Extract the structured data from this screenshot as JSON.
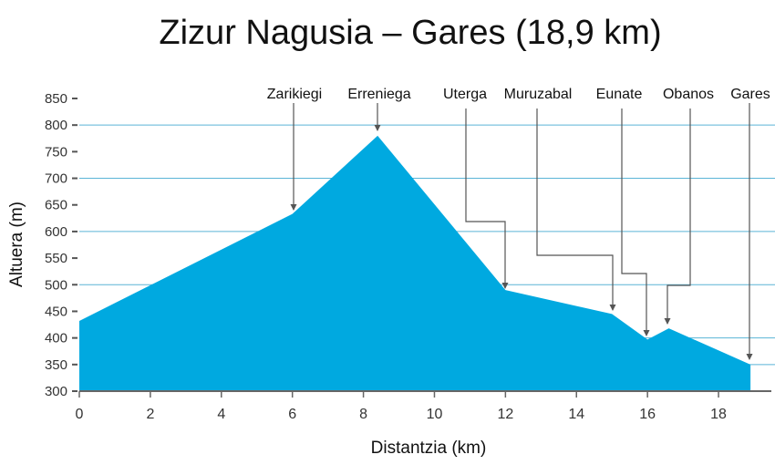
{
  "chart_data": {
    "type": "area",
    "title": "Zizur Nagusia – Gares (18,9 km)",
    "xlabel": "Distantzia (km)",
    "ylabel": "Altuera (m)",
    "xlim": [
      0,
      19
    ],
    "ylim": [
      300,
      850
    ],
    "xticks": [
      0,
      2,
      4,
      6,
      8,
      10,
      12,
      14,
      16,
      18
    ],
    "yticks": [
      300,
      350,
      400,
      450,
      500,
      550,
      600,
      650,
      700,
      750,
      800,
      850
    ],
    "grid": true,
    "fill_color": "#00a9e0",
    "x": [
      0,
      6,
      8.4,
      12,
      15,
      16,
      16.6,
      18.9
    ],
    "y": [
      432,
      633,
      780,
      490,
      445,
      397,
      418,
      350
    ],
    "places": [
      {
        "name": "Zarikiegi",
        "x": 6
      },
      {
        "name": "Erreniega",
        "x": 8.4
      },
      {
        "name": "Uterga",
        "x": 12
      },
      {
        "name": "Muruzabal",
        "x": 15
      },
      {
        "name": "Eunate",
        "x": 16
      },
      {
        "name": "Obanos",
        "x": 16.6
      },
      {
        "name": "Gares",
        "x": 18.9
      }
    ]
  }
}
